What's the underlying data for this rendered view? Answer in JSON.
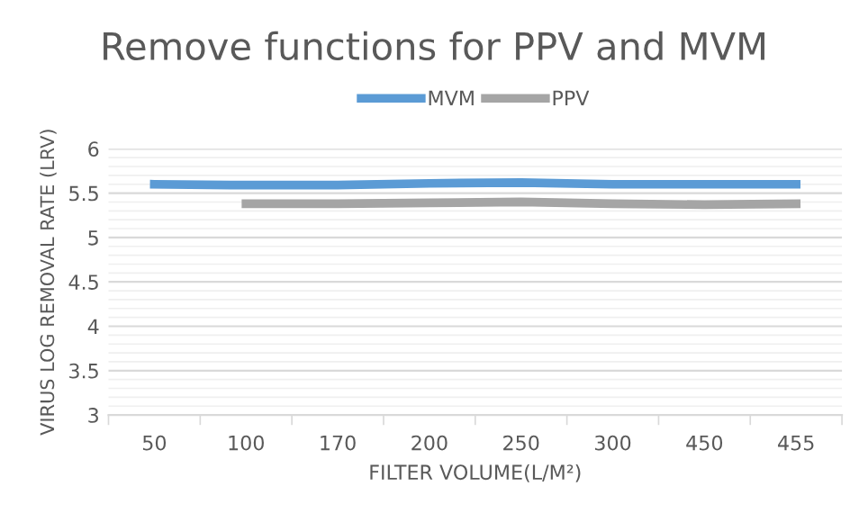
{
  "chart_data": {
    "type": "line",
    "title": "Remove functions for PPV and MVM",
    "xlabel": "FILTER VOLUME(L/M²)",
    "ylabel": "VIRUS LOG REMOVAL RATE (LRV)",
    "categories": [
      "50",
      "100",
      "170",
      "200",
      "250",
      "300",
      "450",
      "455"
    ],
    "series": [
      {
        "name": "MVM",
        "color": "#5b9bd5",
        "values": [
          5.6,
          5.59,
          5.59,
          5.61,
          5.62,
          5.6,
          5.6,
          5.6
        ]
      },
      {
        "name": "PPV",
        "color": "#a5a5a5",
        "values": [
          null,
          5.38,
          5.38,
          5.39,
          5.4,
          5.38,
          5.37,
          5.38
        ]
      }
    ],
    "ylim": [
      3,
      6
    ],
    "yticks": [
      3,
      3.5,
      4,
      4.5,
      5,
      5.5,
      6
    ],
    "grid": "y",
    "legend": "top",
    "marker": "none",
    "line_style": "solid"
  }
}
